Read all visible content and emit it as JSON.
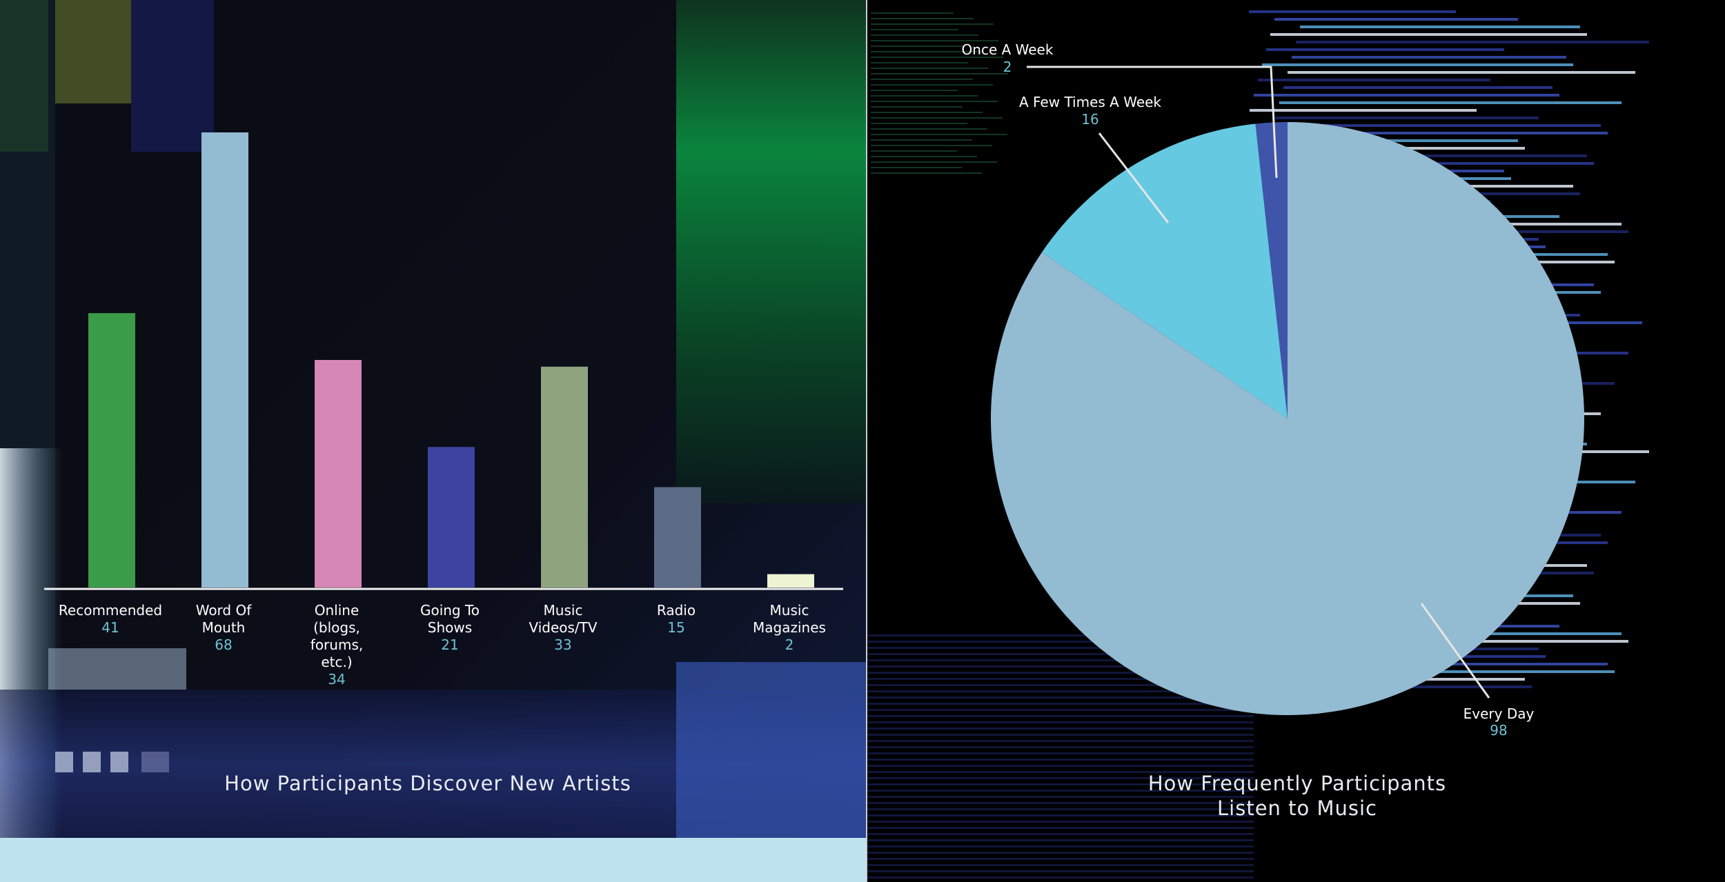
{
  "colors": {
    "label_text": "#ffffff",
    "value_text": "#6ec3d6",
    "axis": "#f2f2f2",
    "leader_line": "#e6e6e6"
  },
  "chart_data": [
    {
      "type": "bar",
      "title": "How Participants Discover New Artists",
      "xlabel": "",
      "ylabel": "",
      "ylim": [
        0,
        70
      ],
      "grid": false,
      "categories": [
        {
          "label_lines": [
            "Recommended"
          ],
          "value": 41,
          "color": "#3a9b48"
        },
        {
          "label_lines": [
            "Word Of",
            "Mouth"
          ],
          "value": 68,
          "color": "#93bbd2"
        },
        {
          "label_lines": [
            "Online",
            "(blogs,",
            "forums,",
            "etc.)"
          ],
          "value": 34,
          "color": "#d687b6"
        },
        {
          "label_lines": [
            "Going To",
            "Shows"
          ],
          "value": 21,
          "color": "#3c43a0"
        },
        {
          "label_lines": [
            "Music",
            "Videos/TV"
          ],
          "value": 33,
          "color": "#8ea47f"
        },
        {
          "label_lines": [
            "Radio"
          ],
          "value": 15,
          "color": "#5c6b86"
        },
        {
          "label_lines": [
            "Music",
            "Magazines"
          ],
          "value": 2,
          "color": "#eef3d4"
        }
      ]
    },
    {
      "type": "pie",
      "title_lines": [
        "How Frequently Participants",
        "Listen to Music"
      ],
      "slices": [
        {
          "label": "Every Day",
          "value": 98,
          "color": "#93bbd2"
        },
        {
          "label": "A Few Times A Week",
          "value": 16,
          "color": "#66c9e2"
        },
        {
          "label": "Once A Week",
          "value": 2,
          "color": "#3f55aa"
        }
      ]
    }
  ]
}
